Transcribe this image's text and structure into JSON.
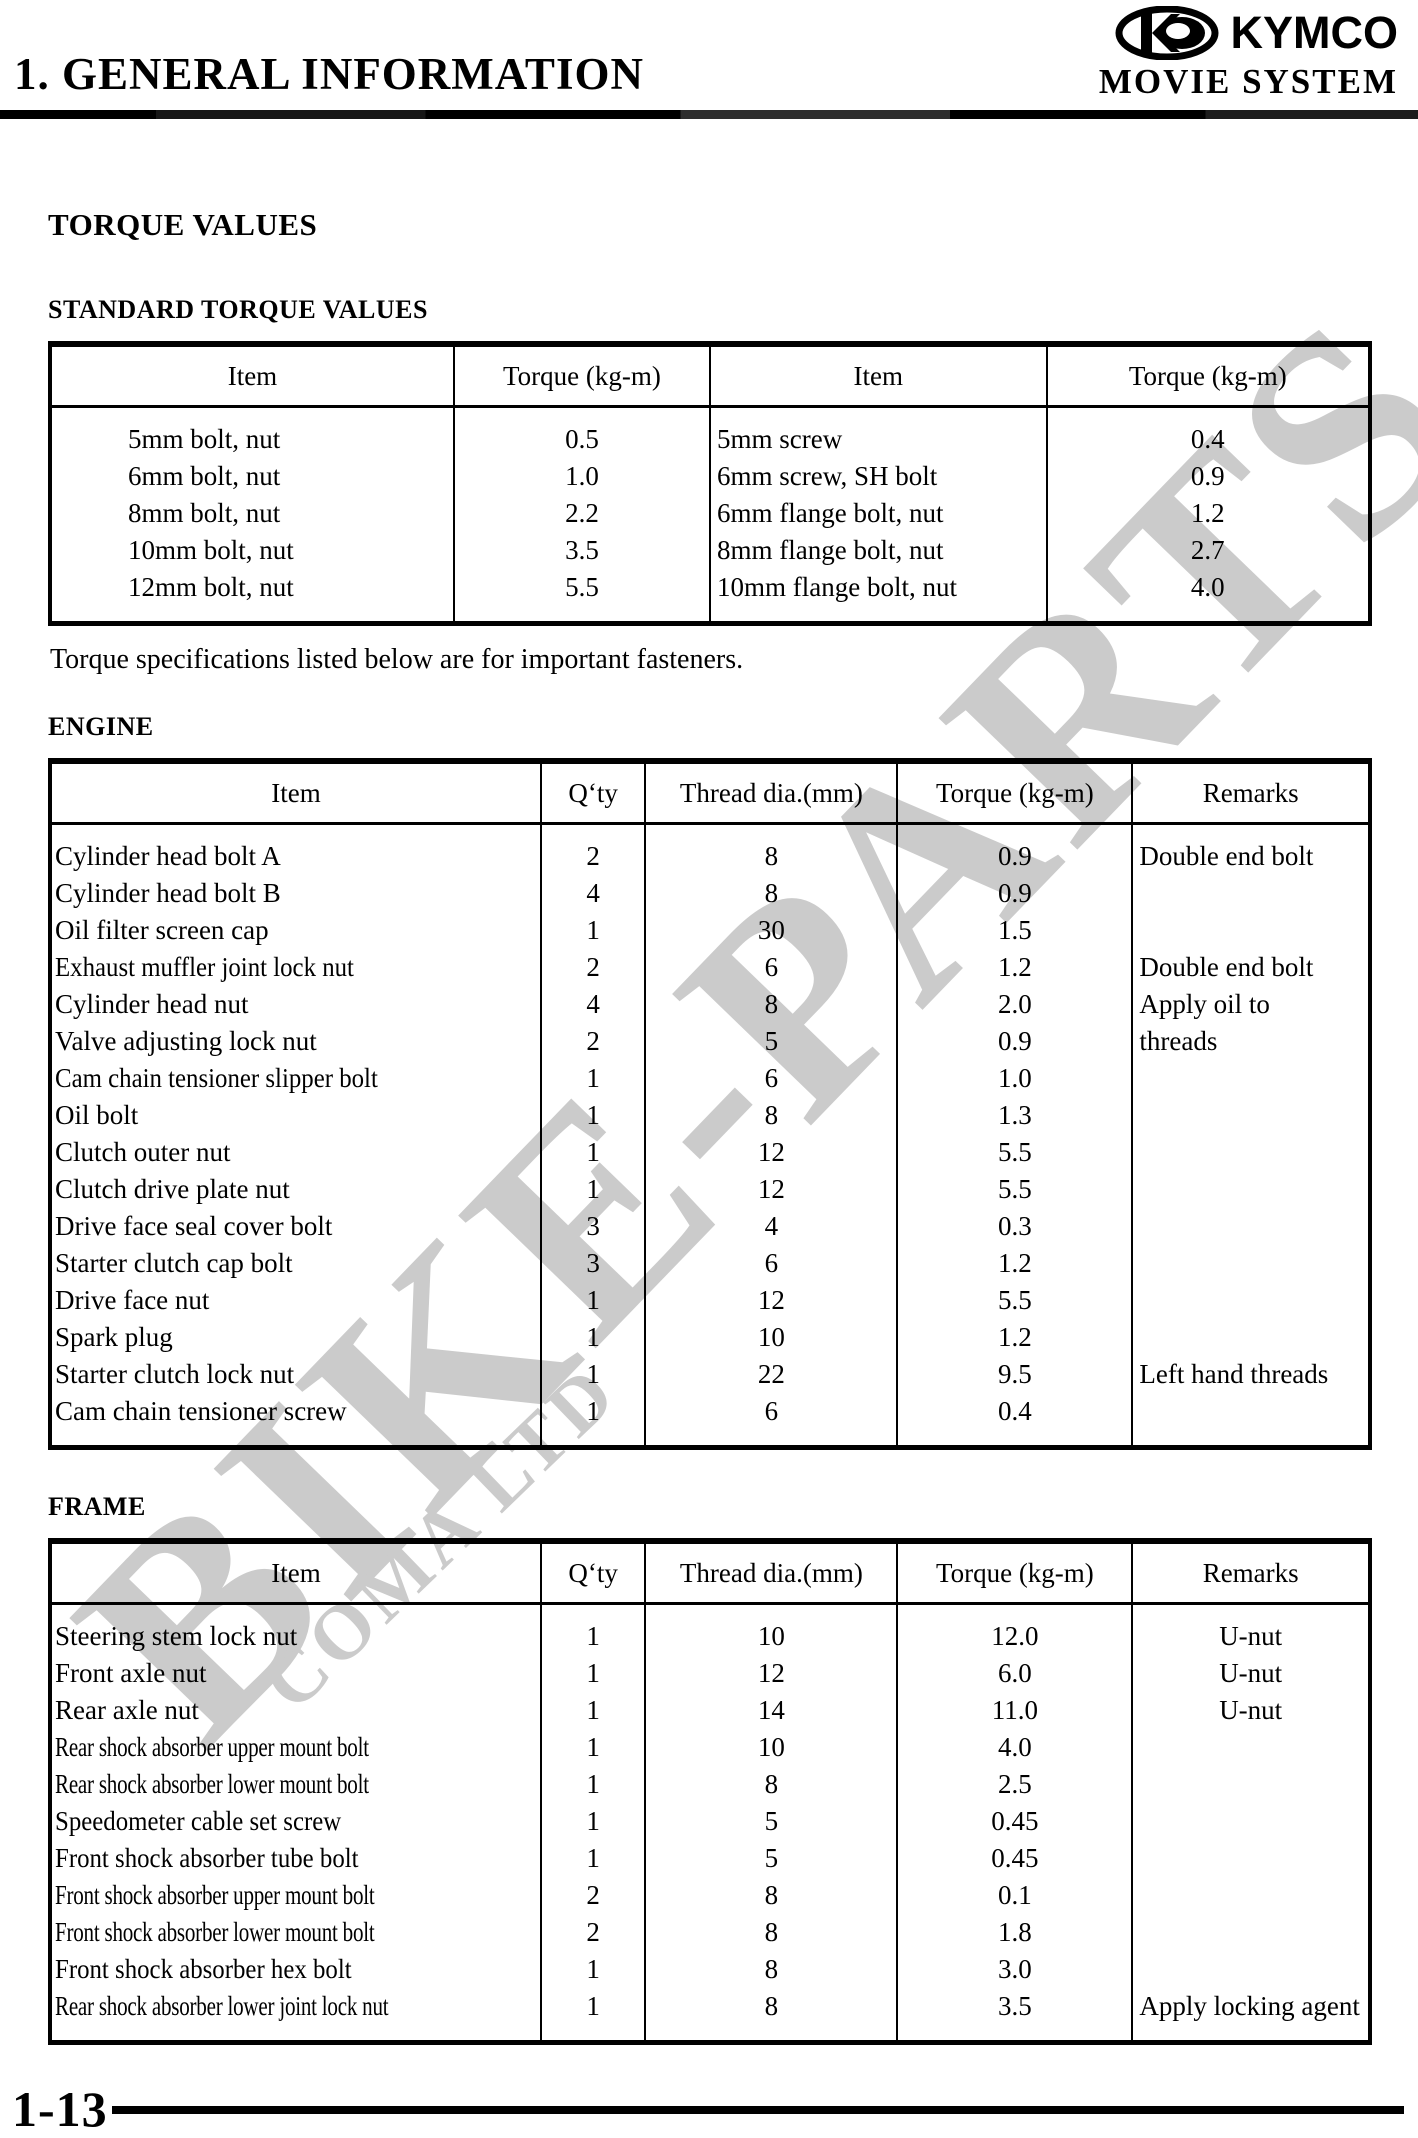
{
  "header": {
    "section_title": "1. GENERAL INFORMATION",
    "brand": "KYMCO",
    "model": "MOVIE SYSTEM"
  },
  "page": {
    "title": "TORQUE VALUES",
    "note": "Torque specifications listed below are for important fasteners.",
    "page_number": "1-13"
  },
  "watermark": {
    "line1": "BIKE-PARTS",
    "line2": "COMA LTD"
  },
  "standard_table": {
    "heading": "STANDARD TORQUE VALUES",
    "headers": [
      "Item",
      "Torque (kg-m)",
      "Item",
      "Torque (kg-m)"
    ],
    "rows": [
      [
        "5mm bolt, nut",
        "0.5",
        "5mm screw",
        "0.4"
      ],
      [
        "6mm bolt, nut",
        "1.0",
        "6mm screw, SH bolt",
        "0.9"
      ],
      [
        "8mm bolt, nut",
        "2.2",
        "6mm flange bolt, nut",
        "1.2"
      ],
      [
        "10mm bolt, nut",
        "3.5",
        "8mm flange bolt, nut",
        "2.7"
      ],
      [
        "12mm bolt, nut",
        "5.5",
        "10mm flange bolt, nut",
        "4.0"
      ]
    ]
  },
  "engine_table": {
    "heading": "ENGINE",
    "headers": [
      "Item",
      "Q‘ty",
      "Thread dia.(mm)",
      "Torque (kg-m)",
      "Remarks"
    ],
    "rows": [
      [
        "Cylinder head bolt A",
        "2",
        "8",
        "0.9",
        "Double end bolt"
      ],
      [
        "Cylinder head bolt B",
        "4",
        "8",
        "0.9",
        ""
      ],
      [
        "Oil filter screen cap",
        "1",
        "30",
        "1.5",
        ""
      ],
      [
        "Exhaust muffler joint lock nut",
        "2",
        "6",
        "1.2",
        "Double end bolt"
      ],
      [
        "Cylinder head nut",
        "4",
        "8",
        "2.0",
        "Apply oil to"
      ],
      [
        "Valve adjusting lock nut",
        "2",
        "5",
        "0.9",
        "threads"
      ],
      [
        "Cam chain tensioner slipper bolt",
        "1",
        "6",
        "1.0",
        ""
      ],
      [
        "Oil bolt",
        "1",
        "8",
        "1.3",
        ""
      ],
      [
        "Clutch outer nut",
        "1",
        "12",
        "5.5",
        ""
      ],
      [
        "Clutch drive plate nut",
        "1",
        "12",
        "5.5",
        ""
      ],
      [
        "Drive face seal cover bolt",
        "3",
        "4",
        "0.3",
        ""
      ],
      [
        "Starter clutch cap bolt",
        "3",
        "6",
        "1.2",
        ""
      ],
      [
        "Drive face nut",
        "1",
        "12",
        "5.5",
        ""
      ],
      [
        "Spark plug",
        "1",
        "10",
        "1.2",
        ""
      ],
      [
        "Starter clutch lock nut",
        "1",
        "22",
        "9.5",
        "Left hand threads"
      ],
      [
        "Cam chain tensioner screw",
        "1",
        "6",
        "0.4",
        ""
      ]
    ]
  },
  "frame_table": {
    "heading": "FRAME",
    "headers": [
      "Item",
      "Q‘ty",
      "Thread dia.(mm)",
      "Torque (kg-m)",
      "Remarks"
    ],
    "rows": [
      [
        "Steering stem lock nut",
        "1",
        "10",
        "12.0",
        "U-nut"
      ],
      [
        "Front axle nut",
        "1",
        "12",
        "6.0",
        "U-nut"
      ],
      [
        "Rear axle nut",
        "1",
        "14",
        "11.0",
        "U-nut"
      ],
      [
        "Rear shock absorber upper mount bolt",
        "1",
        "10",
        "4.0",
        ""
      ],
      [
        "Rear shock absorber lower mount bolt",
        "1",
        "8",
        "2.5",
        ""
      ],
      [
        "Speedometer cable set screw",
        "1",
        "5",
        "0.45",
        ""
      ],
      [
        "Front shock absorber tube bolt",
        "1",
        "5",
        "0.45",
        ""
      ],
      [
        "Front shock absorber upper mount bolt",
        "2",
        "8",
        "0.1",
        ""
      ],
      [
        "Front shock absorber lower mount bolt",
        "2",
        "8",
        "1.8",
        ""
      ],
      [
        "Front shock absorber hex bolt",
        "1",
        "8",
        "3.0",
        ""
      ],
      [
        "Rear shock absorber lower joint lock nut",
        "1",
        "8",
        "3.5",
        "Apply locking agent"
      ]
    ]
  }
}
